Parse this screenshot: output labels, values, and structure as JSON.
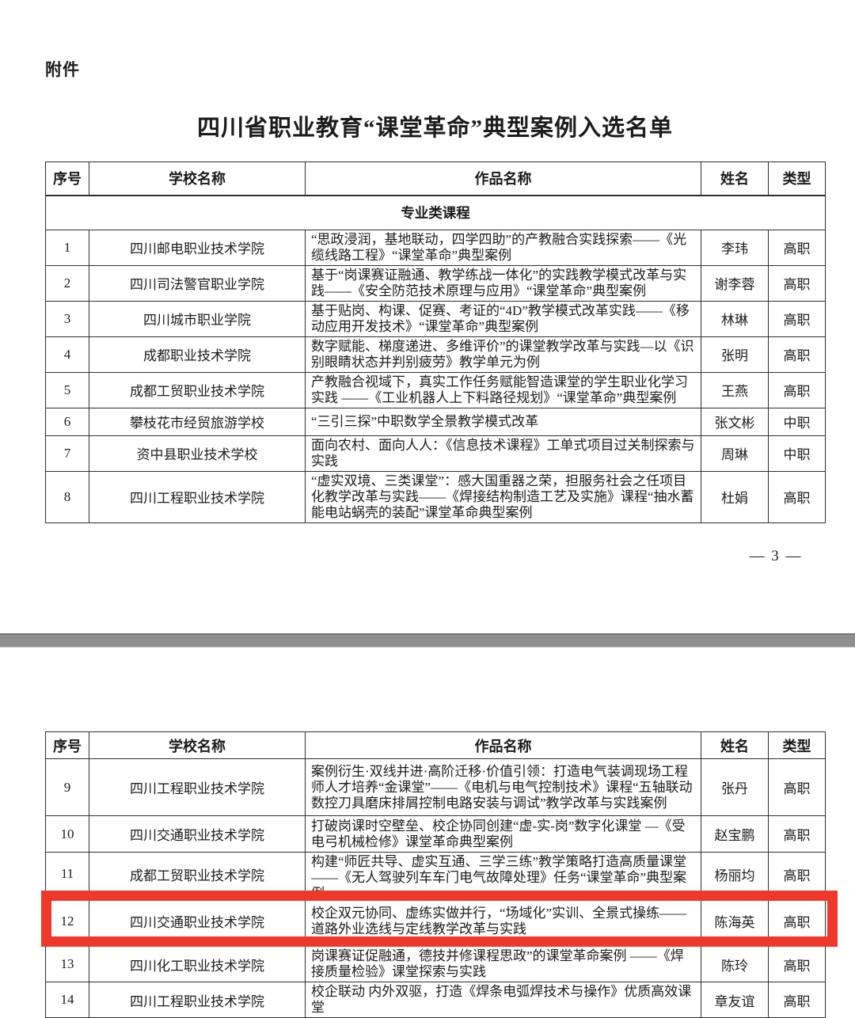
{
  "document": {
    "attachment_label": "附件",
    "title": "四川省职业教育“课堂革命”典型案例入选名单",
    "page_number": "— 3 —"
  },
  "highlight": {
    "color": "#ee382c",
    "highlighted_row_no": "12"
  },
  "tables": [
    {
      "name": "page3-table",
      "headers": [
        "序号",
        "学校名称",
        "作品名称",
        "姓名",
        "类型"
      ],
      "section_label": "专业类课程",
      "rows": [
        {
          "no": "1",
          "school": "四川邮电职业技术学院",
          "work": "“思政浸润，基地联动，四学四助”的产教融合实践探索——《光缆线路工程》“课堂革命”典型案例",
          "name": "李玮",
          "type": "高职"
        },
        {
          "no": "2",
          "school": "四川司法警官职业学院",
          "work": "基于“岗课赛证融通、教学练战一体化”的实践教学模式改革与实践——《安全防范技术原理与应用》“课堂革命”典型案例",
          "name": "谢李蓉",
          "type": "高职"
        },
        {
          "no": "3",
          "school": "四川城市职业学院",
          "work": "基于贴岗、构课、促赛、考证的“4D”教学模式改革实践——《移动应用开发技术》“课堂革命”典型案例",
          "name": "林琳",
          "type": "高职"
        },
        {
          "no": "4",
          "school": "成都职业技术学院",
          "work": "数字赋能、梯度递进、多维评价”的课堂教学改革与实践—以《识别眼睛状态并判别疲劳》教学单元为例",
          "name": "张明",
          "type": "高职"
        },
        {
          "no": "5",
          "school": "成都工贸职业技术学院",
          "work": "产教融合视域下，真实工作任务赋能智造课堂的学生职业化学习实践 ——《工业机器人上下料路径规划》“课堂革命”典型案例",
          "name": "王燕",
          "type": "高职"
        },
        {
          "no": "6",
          "school": "攀枝花市经贸旅游学校",
          "work": "“三引三探”中职数学全景教学模式改革",
          "name": "张文彬",
          "type": "中职"
        },
        {
          "no": "7",
          "school": "资中县职业技术学校",
          "work": "面向农村、面向人人：《信息技术课程》工单式项目过关制探索与实践",
          "name": "周琳",
          "type": "中职"
        },
        {
          "no": "8",
          "school": "四川工程职业技术学院",
          "work": "“虚实双境、三类课堂”：感大国重器之荣，担服务社会之任项目化教学改革与实践——《焊接结构制造工艺及实施》课程“抽水蓄能电站蜗壳的装配”课堂革命典型案例",
          "name": "杜娟",
          "type": "高职"
        }
      ]
    },
    {
      "name": "page4-table",
      "headers": [
        "序号",
        "学校名称",
        "作品名称",
        "姓名",
        "类型"
      ],
      "section_label": "",
      "rows": [
        {
          "no": "9",
          "school": "四川工程职业技术学院",
          "work": "案例衍生·双线并进·高阶迁移·价值引领：打造电气装调现场工程师人才培养“金课堂”——《电机与电气控制技术》课程“五轴联动数控刀具磨床排屑控制电路安装与调试”教学改革与实践案例",
          "name": "张丹",
          "type": "高职"
        },
        {
          "no": "10",
          "school": "四川交通职业技术学院",
          "work": "打破岗课时空壁垒、校企协同创建“虚-实-岗”数字化课堂 —《受电弓机械检修》课堂革命典型案例",
          "name": "赵宝鹏",
          "type": "高职"
        },
        {
          "no": "11",
          "school": "成都工贸职业技术学院",
          "work": "构建“师匠共导、虚实互通、三学三练”教学策略打造高质量课堂——《无人驾驶列车车门电气故障处理》任务“课堂革命”典型案例",
          "name": "杨丽均",
          "type": "高职"
        },
        {
          "no": "12",
          "school": "四川交通职业技术学院",
          "work": "校企双元协同、虚练实做并行，“场域化”实训、全景式操练——道路外业选线与定线教学改革与实践",
          "name": "陈海英",
          "type": "高职"
        },
        {
          "no": "13",
          "school": "四川化工职业技术学院",
          "work": "岗课赛证促融通，德技并修课程思政”的课堂革命案例 ——《焊接质量检验》课堂探索与实践",
          "name": "陈玲",
          "type": "高职"
        },
        {
          "no": "14",
          "school": "四川工程职业技术学院",
          "work": "校企联动 内外双驱，打造《焊条电弧焊技术与操作》优质高效课堂",
          "name": "章友谊",
          "type": "高职"
        }
      ]
    }
  ]
}
